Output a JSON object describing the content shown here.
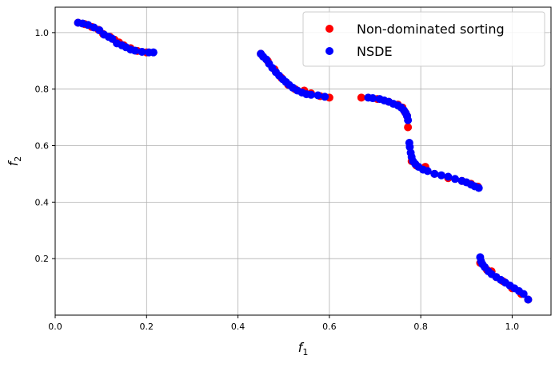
{
  "chart_data": {
    "type": "scatter",
    "title": "",
    "xlabel": "f",
    "xlabel_sub": "1",
    "ylabel": "f",
    "ylabel_sub": "2",
    "xlim": [
      0.0,
      1.085
    ],
    "ylim": [
      0.0,
      1.09
    ],
    "xticks": [
      0.0,
      0.2,
      0.4,
      0.6,
      0.8,
      1.0
    ],
    "xtick_labels": [
      "0.0",
      "0.2",
      "0.4",
      "0.6",
      "0.8",
      "1.0"
    ],
    "yticks": [
      0.2,
      0.4,
      0.6,
      0.8,
      1.0
    ],
    "ytick_labels": [
      "0.2",
      "0.4",
      "0.6",
      "0.8",
      "1.0"
    ],
    "grid": true,
    "legend_position": "top-right",
    "series": [
      {
        "name": "Non-dominated sorting",
        "color": "#ff0000",
        "points": [
          [
            0.05,
            1.035
          ],
          [
            0.065,
            1.03
          ],
          [
            0.08,
            1.02
          ],
          [
            0.095,
            1.01
          ],
          [
            0.105,
            0.995
          ],
          [
            0.12,
            0.985
          ],
          [
            0.13,
            0.975
          ],
          [
            0.14,
            0.965
          ],
          [
            0.15,
            0.955
          ],
          [
            0.165,
            0.945
          ],
          [
            0.18,
            0.935
          ],
          [
            0.2,
            0.93
          ],
          [
            0.45,
            0.925
          ],
          [
            0.465,
            0.9
          ],
          [
            0.48,
            0.87
          ],
          [
            0.495,
            0.84
          ],
          [
            0.51,
            0.815
          ],
          [
            0.525,
            0.8
          ],
          [
            0.545,
            0.795
          ],
          [
            0.56,
            0.785
          ],
          [
            0.58,
            0.775
          ],
          [
            0.6,
            0.77
          ],
          [
            0.67,
            0.77
          ],
          [
            0.705,
            0.765
          ],
          [
            0.73,
            0.755
          ],
          [
            0.75,
            0.745
          ],
          [
            0.76,
            0.735
          ],
          [
            0.765,
            0.72
          ],
          [
            0.77,
            0.705
          ],
          [
            0.772,
            0.665
          ],
          [
            0.78,
            0.545
          ],
          [
            0.79,
            0.53
          ],
          [
            0.81,
            0.525
          ],
          [
            0.83,
            0.5
          ],
          [
            0.86,
            0.485
          ],
          [
            0.89,
            0.475
          ],
          [
            0.91,
            0.465
          ],
          [
            0.925,
            0.455
          ],
          [
            0.93,
            0.185
          ],
          [
            0.945,
            0.16
          ],
          [
            0.955,
            0.155
          ],
          [
            0.965,
            0.135
          ],
          [
            0.98,
            0.12
          ],
          [
            1.0,
            0.095
          ],
          [
            1.02,
            0.075
          ],
          [
            1.035,
            0.055
          ]
        ]
      },
      {
        "name": "NSDE",
        "color": "#0000ff",
        "points": [
          [
            0.05,
            1.035
          ],
          [
            0.06,
            1.032
          ],
          [
            0.072,
            1.027
          ],
          [
            0.085,
            1.018
          ],
          [
            0.097,
            1.008
          ],
          [
            0.107,
            0.993
          ],
          [
            0.117,
            0.985
          ],
          [
            0.125,
            0.978
          ],
          [
            0.135,
            0.962
          ],
          [
            0.146,
            0.955
          ],
          [
            0.155,
            0.948
          ],
          [
            0.165,
            0.94
          ],
          [
            0.175,
            0.936
          ],
          [
            0.19,
            0.932
          ],
          [
            0.205,
            0.93
          ],
          [
            0.215,
            0.93
          ],
          [
            0.45,
            0.925
          ],
          [
            0.455,
            0.915
          ],
          [
            0.462,
            0.905
          ],
          [
            0.468,
            0.89
          ],
          [
            0.475,
            0.875
          ],
          [
            0.483,
            0.86
          ],
          [
            0.49,
            0.848
          ],
          [
            0.498,
            0.835
          ],
          [
            0.505,
            0.825
          ],
          [
            0.512,
            0.815
          ],
          [
            0.52,
            0.805
          ],
          [
            0.53,
            0.795
          ],
          [
            0.54,
            0.788
          ],
          [
            0.55,
            0.782
          ],
          [
            0.56,
            0.78
          ],
          [
            0.575,
            0.778
          ],
          [
            0.59,
            0.773
          ],
          [
            0.685,
            0.77
          ],
          [
            0.695,
            0.768
          ],
          [
            0.71,
            0.765
          ],
          [
            0.72,
            0.76
          ],
          [
            0.73,
            0.755
          ],
          [
            0.74,
            0.748
          ],
          [
            0.75,
            0.742
          ],
          [
            0.757,
            0.735
          ],
          [
            0.763,
            0.725
          ],
          [
            0.767,
            0.715
          ],
          [
            0.77,
            0.705
          ],
          [
            0.772,
            0.69
          ],
          [
            0.775,
            0.61
          ],
          [
            0.776,
            0.595
          ],
          [
            0.778,
            0.575
          ],
          [
            0.78,
            0.56
          ],
          [
            0.783,
            0.545
          ],
          [
            0.788,
            0.535
          ],
          [
            0.795,
            0.525
          ],
          [
            0.805,
            0.515
          ],
          [
            0.815,
            0.51
          ],
          [
            0.83,
            0.5
          ],
          [
            0.845,
            0.495
          ],
          [
            0.86,
            0.49
          ],
          [
            0.875,
            0.482
          ],
          [
            0.89,
            0.475
          ],
          [
            0.9,
            0.47
          ],
          [
            0.91,
            0.462
          ],
          [
            0.918,
            0.456
          ],
          [
            0.927,
            0.45
          ],
          [
            0.93,
            0.205
          ],
          [
            0.932,
            0.19
          ],
          [
            0.935,
            0.18
          ],
          [
            0.94,
            0.17
          ],
          [
            0.948,
            0.155
          ],
          [
            0.955,
            0.145
          ],
          [
            0.965,
            0.135
          ],
          [
            0.975,
            0.125
          ],
          [
            0.985,
            0.115
          ],
          [
            0.995,
            0.105
          ],
          [
            1.005,
            0.095
          ],
          [
            1.015,
            0.085
          ],
          [
            1.025,
            0.075
          ],
          [
            1.035,
            0.055
          ]
        ]
      }
    ]
  }
}
